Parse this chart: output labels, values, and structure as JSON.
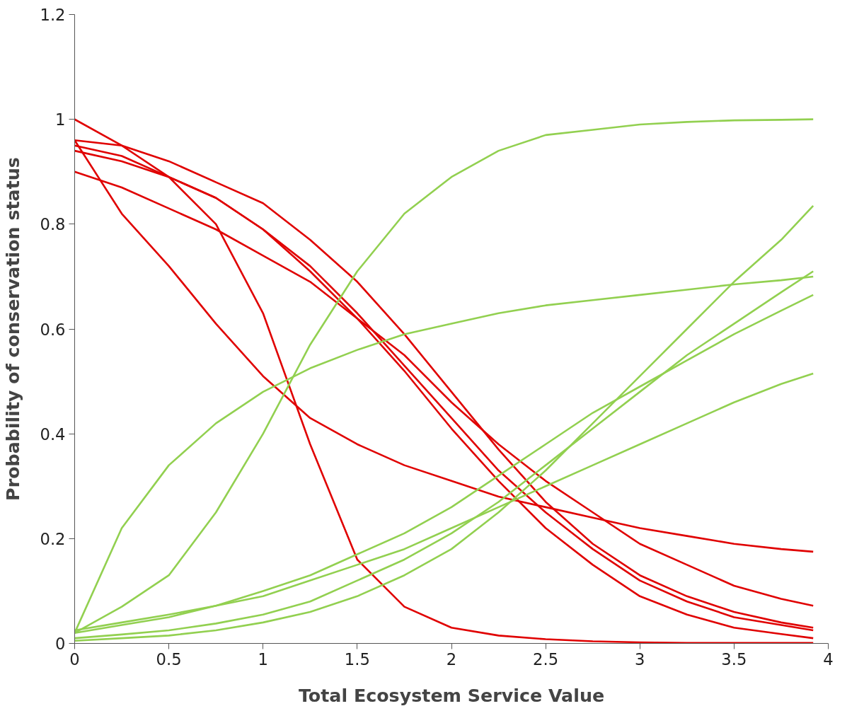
{
  "chart_data": {
    "type": "line",
    "xlabel": "Total Ecosystem Service Value",
    "ylabel": "Probability of conservation status",
    "xlim": [
      0,
      4
    ],
    "ylim": [
      0,
      1.2
    ],
    "xticks": [
      0,
      0.5,
      1,
      1.5,
      2,
      2.5,
      3,
      3.5,
      4
    ],
    "yticks": [
      0,
      0.2,
      0.4,
      0.6,
      0.8,
      1,
      1.2
    ],
    "grid": false,
    "marker": "none",
    "line_style": "solid",
    "x": [
      0,
      0.25,
      0.5,
      0.75,
      1,
      1.25,
      1.5,
      1.75,
      2,
      2.25,
      2.5,
      2.75,
      3,
      3.25,
      3.5,
      3.75,
      3.92
    ],
    "series": [
      {
        "color": "#e00000",
        "values": [
          1.0,
          0.95,
          0.89,
          0.8,
          0.63,
          0.38,
          0.16,
          0.07,
          0.03,
          0.015,
          0.008,
          0.004,
          0.002,
          0.001,
          0.001,
          0.001,
          0.001
        ]
      },
      {
        "color": "#e00000",
        "values": [
          0.96,
          0.82,
          0.72,
          0.61,
          0.51,
          0.43,
          0.38,
          0.34,
          0.31,
          0.28,
          0.26,
          0.24,
          0.22,
          0.205,
          0.19,
          0.18,
          0.175
        ]
      },
      {
        "color": "#e00000",
        "values": [
          0.9,
          0.87,
          0.83,
          0.79,
          0.74,
          0.69,
          0.62,
          0.55,
          0.46,
          0.38,
          0.31,
          0.25,
          0.19,
          0.15,
          0.11,
          0.085,
          0.072
        ]
      },
      {
        "color": "#e00000",
        "values": [
          0.96,
          0.95,
          0.92,
          0.88,
          0.84,
          0.77,
          0.69,
          0.59,
          0.48,
          0.37,
          0.27,
          0.19,
          0.13,
          0.09,
          0.06,
          0.04,
          0.03
        ]
      },
      {
        "color": "#e00000",
        "values": [
          0.95,
          0.93,
          0.89,
          0.85,
          0.79,
          0.72,
          0.63,
          0.53,
          0.43,
          0.33,
          0.25,
          0.18,
          0.12,
          0.08,
          0.05,
          0.035,
          0.025
        ]
      },
      {
        "color": "#e00000",
        "values": [
          0.94,
          0.92,
          0.89,
          0.85,
          0.79,
          0.71,
          0.62,
          0.52,
          0.41,
          0.31,
          0.22,
          0.15,
          0.09,
          0.055,
          0.03,
          0.018,
          0.01
        ]
      },
      {
        "color": "#92d050",
        "values": [
          0.02,
          0.07,
          0.13,
          0.25,
          0.4,
          0.57,
          0.71,
          0.82,
          0.89,
          0.94,
          0.97,
          0.98,
          0.99,
          0.995,
          0.998,
          0.999,
          1.0
        ]
      },
      {
        "color": "#92d050",
        "values": [
          0.02,
          0.22,
          0.34,
          0.42,
          0.48,
          0.525,
          0.56,
          0.59,
          0.61,
          0.63,
          0.645,
          0.655,
          0.665,
          0.675,
          0.685,
          0.693,
          0.7
        ]
      },
      {
        "color": "#92d050",
        "values": [
          0.005,
          0.01,
          0.015,
          0.025,
          0.04,
          0.06,
          0.09,
          0.13,
          0.18,
          0.25,
          0.33,
          0.42,
          0.51,
          0.6,
          0.69,
          0.77,
          0.835
        ]
      },
      {
        "color": "#92d050",
        "values": [
          0.01,
          0.017,
          0.025,
          0.038,
          0.055,
          0.08,
          0.12,
          0.16,
          0.21,
          0.27,
          0.34,
          0.41,
          0.48,
          0.55,
          0.61,
          0.67,
          0.71
        ]
      },
      {
        "color": "#92d050",
        "values": [
          0.02,
          0.035,
          0.05,
          0.072,
          0.1,
          0.13,
          0.17,
          0.21,
          0.26,
          0.32,
          0.38,
          0.44,
          0.49,
          0.54,
          0.59,
          0.635,
          0.665
        ]
      },
      {
        "color": "#92d050",
        "values": [
          0.025,
          0.04,
          0.055,
          0.072,
          0.09,
          0.12,
          0.15,
          0.18,
          0.22,
          0.26,
          0.3,
          0.34,
          0.38,
          0.42,
          0.46,
          0.495,
          0.515
        ]
      }
    ]
  }
}
